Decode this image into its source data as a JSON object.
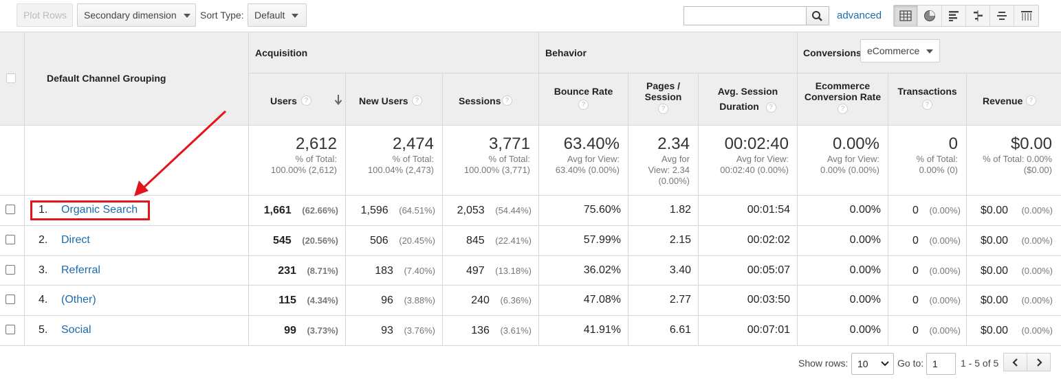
{
  "toolbar": {
    "plot_rows": "Plot Rows",
    "secondary_dimension": "Secondary dimension",
    "sort_type_label": "Sort Type:",
    "sort_type_value": "Default",
    "search_value": "",
    "advanced": "advanced",
    "views": [
      "table-view-icon",
      "pie-view-icon",
      "performance-view-icon",
      "comparison-view-icon",
      "term-cloud-icon",
      "pivot-view-icon"
    ]
  },
  "table": {
    "dimension_header": "Default Channel Grouping",
    "groups": {
      "acquisition": "Acquisition",
      "behavior": "Behavior",
      "conversions": "Conversions",
      "conversions_select": "eCommerce"
    },
    "columns": {
      "users": "Users",
      "new_users": "New Users",
      "sessions": "Sessions",
      "bounce_rate": "Bounce Rate",
      "pages_session_1": "Pages /",
      "pages_session_2": "Session",
      "avg_duration_1": "Avg. Session",
      "avg_duration_2": "Duration",
      "conv_rate_1": "Ecommerce",
      "conv_rate_2": "Conversion Rate",
      "transactions": "Transactions",
      "revenue": "Revenue"
    },
    "totals": {
      "users": {
        "big": "2,612",
        "l1": "% of Total:",
        "l2": "100.00% (2,612)"
      },
      "new_users": {
        "big": "2,474",
        "l1": "% of Total:",
        "l2": "100.04% (2,473)"
      },
      "sessions": {
        "big": "3,771",
        "l1": "% of Total:",
        "l2": "100.00% (3,771)"
      },
      "bounce_rate": {
        "big": "63.40%",
        "l1": "Avg for View:",
        "l2": "63.40% (0.00%)"
      },
      "pages_session": {
        "big": "2.34",
        "l1": "Avg for",
        "l2": "View: 2.34",
        "l3": "(0.00%)"
      },
      "avg_duration": {
        "big": "00:02:40",
        "l1": "Avg for View:",
        "l2": "00:02:40 (0.00%)"
      },
      "conv_rate": {
        "big": "0.00%",
        "l1": "Avg for View:",
        "l2": "0.00% (0.00%)"
      },
      "transactions": {
        "big": "0",
        "l1": "% of Total:",
        "l2": "0.00% (0)"
      },
      "revenue": {
        "big": "$0.00",
        "l1": "% of Total: 0.00%",
        "l2": "($0.00)"
      }
    },
    "rows": [
      {
        "idx": "1.",
        "name": "Organic Search",
        "users": "1,661",
        "users_pct": "(62.66%)",
        "new_users": "1,596",
        "new_users_pct": "(64.51%)",
        "sessions": "2,053",
        "sessions_pct": "(54.44%)",
        "bounce": "75.60%",
        "pages": "1.82",
        "duration": "00:01:54",
        "conv": "0.00%",
        "trans": "0",
        "trans_pct": "(0.00%)",
        "rev": "$0.00",
        "rev_pct": "(0.00%)"
      },
      {
        "idx": "2.",
        "name": "Direct",
        "users": "545",
        "users_pct": "(20.56%)",
        "new_users": "506",
        "new_users_pct": "(20.45%)",
        "sessions": "845",
        "sessions_pct": "(22.41%)",
        "bounce": "57.99%",
        "pages": "2.15",
        "duration": "00:02:02",
        "conv": "0.00%",
        "trans": "0",
        "trans_pct": "(0.00%)",
        "rev": "$0.00",
        "rev_pct": "(0.00%)"
      },
      {
        "idx": "3.",
        "name": "Referral",
        "users": "231",
        "users_pct": "(8.71%)",
        "new_users": "183",
        "new_users_pct": "(7.40%)",
        "sessions": "497",
        "sessions_pct": "(13.18%)",
        "bounce": "36.02%",
        "pages": "3.40",
        "duration": "00:05:07",
        "conv": "0.00%",
        "trans": "0",
        "trans_pct": "(0.00%)",
        "rev": "$0.00",
        "rev_pct": "(0.00%)"
      },
      {
        "idx": "4.",
        "name": "(Other)",
        "users": "115",
        "users_pct": "(4.34%)",
        "new_users": "96",
        "new_users_pct": "(3.88%)",
        "sessions": "240",
        "sessions_pct": "(6.36%)",
        "bounce": "47.08%",
        "pages": "2.77",
        "duration": "00:03:50",
        "conv": "0.00%",
        "trans": "0",
        "trans_pct": "(0.00%)",
        "rev": "$0.00",
        "rev_pct": "(0.00%)"
      },
      {
        "idx": "5.",
        "name": "Social",
        "users": "99",
        "users_pct": "(3.73%)",
        "new_users": "93",
        "new_users_pct": "(3.76%)",
        "sessions": "136",
        "sessions_pct": "(3.61%)",
        "bounce": "41.91%",
        "pages": "6.61",
        "duration": "00:07:01",
        "conv": "0.00%",
        "trans": "0",
        "trans_pct": "(0.00%)",
        "rev": "$0.00",
        "rev_pct": "(0.00%)"
      }
    ]
  },
  "pager": {
    "show_rows_label": "Show rows:",
    "show_rows_value": "10",
    "goto_label": "Go to:",
    "goto_value": "1",
    "range": "1 - 5 of 5"
  },
  "colors": {
    "annotation": "#e3141b",
    "link": "#1a6bad",
    "header_bg": "#eeeeee"
  }
}
